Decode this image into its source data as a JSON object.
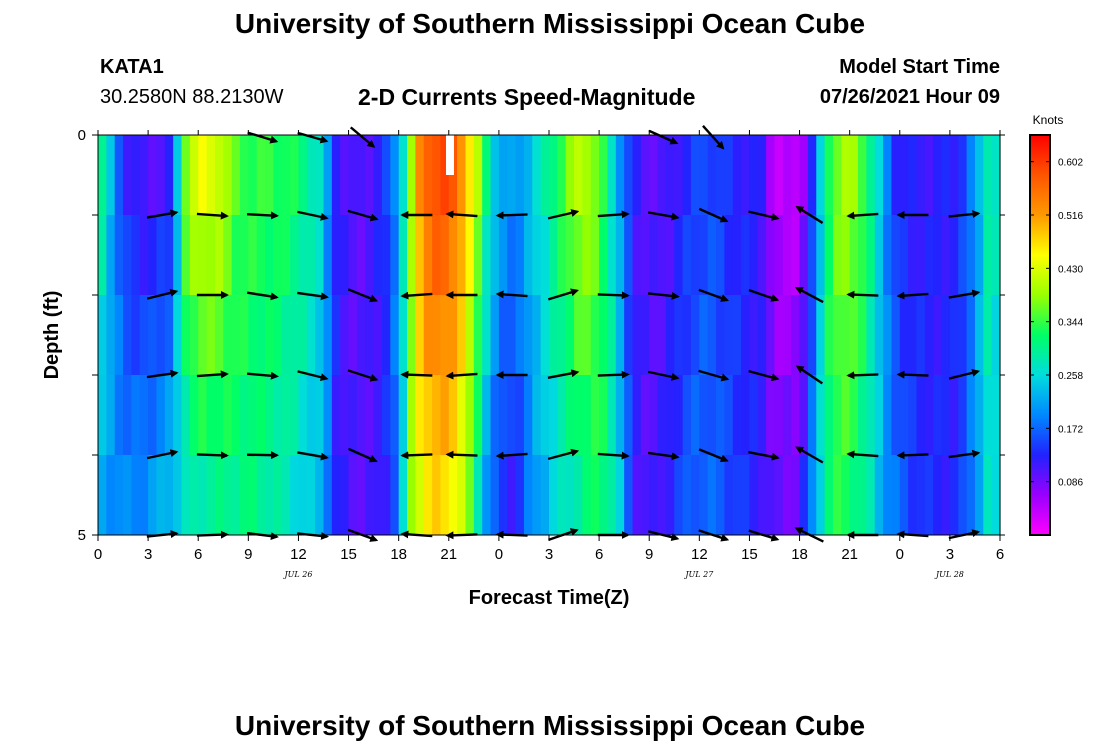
{
  "header": {
    "title": "University of Southern Mississippi Ocean Cube",
    "station": "KATA1",
    "coords": "30.2580N  88.2130W",
    "subtitle": "2-D Currents Speed-Magnitude",
    "model_start_label": "Model Start Time",
    "model_start_value": "07/26/2021 Hour 09"
  },
  "footer": {
    "title": "University of Southern Mississippi Ocean Cube"
  },
  "chart_data": {
    "type": "heatmap",
    "title": "2-D Currents Speed-Magnitude",
    "xlabel": "Forecast Time(Z)",
    "ylabel": "Depth (ft)",
    "x_tick_labels": [
      "0",
      "3",
      "6",
      "9",
      "12",
      "15",
      "18",
      "21",
      "0",
      "3",
      "6",
      "9",
      "12",
      "15",
      "18",
      "21",
      "0",
      "3",
      "6"
    ],
    "date_labels": [
      {
        "text": "JUL 26",
        "hour_index": 12
      },
      {
        "text": "JUL 27",
        "hour_index": 36
      },
      {
        "text": "JUL 28",
        "hour_index": 51
      }
    ],
    "x_range_hours": [
      0,
      54
    ],
    "y_range_ft": [
      0,
      5
    ],
    "y_tick_labels": [
      "0",
      "5"
    ],
    "depth_levels": 5,
    "colorbar": {
      "units": "Knots",
      "range": [
        0.0,
        0.645
      ],
      "tick_values": [
        "0.086",
        "0.172",
        "0.258",
        "0.344",
        "0.430",
        "0.516",
        "0.602"
      ],
      "colors": [
        "#ff00ff",
        "#9900ff",
        "#2222ff",
        "#0088ff",
        "#00dddd",
        "#00ff66",
        "#99ff00",
        "#ffff00",
        "#ff9900",
        "#ff5500",
        "#ff0000"
      ]
    },
    "speed_profile_top": [
      {
        "t": 0,
        "v": 0.34
      },
      {
        "t": 0.5,
        "v": 0.26
      },
      {
        "t": 1,
        "v": 0.2
      },
      {
        "t": 1.5,
        "v": 0.13
      },
      {
        "t": 3,
        "v": 0.1
      },
      {
        "t": 4.5,
        "v": 0.12
      },
      {
        "t": 5,
        "v": 0.36
      },
      {
        "t": 6,
        "v": 0.44
      },
      {
        "t": 7.5,
        "v": 0.42
      },
      {
        "t": 8,
        "v": 0.36
      },
      {
        "t": 9,
        "v": 0.34
      },
      {
        "t": 10.5,
        "v": 0.34
      },
      {
        "t": 11.5,
        "v": 0.33
      },
      {
        "t": 12.5,
        "v": 0.3
      },
      {
        "t": 13.5,
        "v": 0.26
      },
      {
        "t": 14,
        "v": 0.14
      },
      {
        "t": 15,
        "v": 0.1
      },
      {
        "t": 16,
        "v": 0.1
      },
      {
        "t": 17.2,
        "v": 0.14
      },
      {
        "t": 18,
        "v": 0.22
      },
      {
        "t": 18.7,
        "v": 0.38
      },
      {
        "t": 19.4,
        "v": 0.56
      },
      {
        "t": 20.5,
        "v": 0.6
      },
      {
        "t": 21.5,
        "v": 0.56
      },
      {
        "t": 22.5,
        "v": 0.44
      },
      {
        "t": 23.3,
        "v": 0.3
      },
      {
        "t": 24,
        "v": 0.22
      },
      {
        "t": 25,
        "v": 0.2
      },
      {
        "t": 26.5,
        "v": 0.27
      },
      {
        "t": 27.5,
        "v": 0.33
      },
      {
        "t": 29,
        "v": 0.42
      },
      {
        "t": 30,
        "v": 0.36
      },
      {
        "t": 31,
        "v": 0.24
      },
      {
        "t": 32,
        "v": 0.12
      },
      {
        "t": 33,
        "v": 0.1
      },
      {
        "t": 34,
        "v": 0.1
      },
      {
        "t": 35,
        "v": 0.13
      },
      {
        "t": 36.5,
        "v": 0.16
      },
      {
        "t": 38,
        "v": 0.13
      },
      {
        "t": 39.7,
        "v": 0.12
      },
      {
        "t": 40.5,
        "v": 0.04
      },
      {
        "t": 42,
        "v": 0.04
      },
      {
        "t": 42.8,
        "v": 0.14
      },
      {
        "t": 43.6,
        "v": 0.32
      },
      {
        "t": 44.5,
        "v": 0.4
      },
      {
        "t": 45.5,
        "v": 0.38
      },
      {
        "t": 46.3,
        "v": 0.3
      },
      {
        "t": 47,
        "v": 0.22
      },
      {
        "t": 47.6,
        "v": 0.14
      },
      {
        "t": 48.5,
        "v": 0.12
      },
      {
        "t": 50,
        "v": 0.12
      },
      {
        "t": 51.5,
        "v": 0.13
      },
      {
        "t": 52.5,
        "v": 0.2
      },
      {
        "t": 53.3,
        "v": 0.3
      },
      {
        "t": 54,
        "v": 0.26
      }
    ],
    "speed_profile_bottom": [
      {
        "t": 0,
        "v": 0.22
      },
      {
        "t": 1,
        "v": 0.2
      },
      {
        "t": 2,
        "v": 0.19
      },
      {
        "t": 3,
        "v": 0.2
      },
      {
        "t": 4.5,
        "v": 0.24
      },
      {
        "t": 6,
        "v": 0.29
      },
      {
        "t": 7.5,
        "v": 0.3
      },
      {
        "t": 9,
        "v": 0.31
      },
      {
        "t": 10.5,
        "v": 0.29
      },
      {
        "t": 12,
        "v": 0.26
      },
      {
        "t": 13.5,
        "v": 0.22
      },
      {
        "t": 14.3,
        "v": 0.12
      },
      {
        "t": 15.5,
        "v": 0.1
      },
      {
        "t": 17,
        "v": 0.11
      },
      {
        "t": 18,
        "v": 0.18
      },
      {
        "t": 18.7,
        "v": 0.38
      },
      {
        "t": 19.5,
        "v": 0.46
      },
      {
        "t": 20.5,
        "v": 0.48
      },
      {
        "t": 21.5,
        "v": 0.45
      },
      {
        "t": 22.5,
        "v": 0.33
      },
      {
        "t": 23.3,
        "v": 0.2
      },
      {
        "t": 24,
        "v": 0.14
      },
      {
        "t": 25,
        "v": 0.12
      },
      {
        "t": 26,
        "v": 0.2
      },
      {
        "t": 27.5,
        "v": 0.26
      },
      {
        "t": 29,
        "v": 0.3
      },
      {
        "t": 30,
        "v": 0.33
      },
      {
        "t": 31,
        "v": 0.28
      },
      {
        "t": 32,
        "v": 0.12
      },
      {
        "t": 33,
        "v": 0.1
      },
      {
        "t": 34,
        "v": 0.12
      },
      {
        "t": 35.5,
        "v": 0.17
      },
      {
        "t": 37,
        "v": 0.17
      },
      {
        "t": 38.5,
        "v": 0.14
      },
      {
        "t": 39.7,
        "v": 0.12
      },
      {
        "t": 40.5,
        "v": 0.09
      },
      {
        "t": 42,
        "v": 0.09
      },
      {
        "t": 42.8,
        "v": 0.2
      },
      {
        "t": 43.6,
        "v": 0.31
      },
      {
        "t": 44.5,
        "v": 0.34
      },
      {
        "t": 45.5,
        "v": 0.31
      },
      {
        "t": 46.3,
        "v": 0.27
      },
      {
        "t": 47.2,
        "v": 0.2
      },
      {
        "t": 48.5,
        "v": 0.15
      },
      {
        "t": 50,
        "v": 0.13
      },
      {
        "t": 51.5,
        "v": 0.13
      },
      {
        "t": 52.5,
        "v": 0.2
      },
      {
        "t": 53.3,
        "v": 0.27
      },
      {
        "t": 54,
        "v": 0.24
      }
    ],
    "vector_times_hours": [
      3.1,
      6.1,
      9.1,
      12.1,
      15.1,
      18.4,
      21.1,
      24.1,
      27.1,
      30.1,
      33.1,
      36.1,
      39.1,
      41.9,
      45.1,
      48.1,
      51.1
    ],
    "vector_depths_ft": [
      0,
      1,
      2,
      3,
      4,
      5
    ],
    "vector_directions_deg": [
      10,
      0,
      -5,
      -10,
      -20,
      180,
      180,
      180,
      15,
      0,
      -10,
      -20,
      -15,
      150,
      180,
      180,
      10
    ],
    "top_row_directions_deg": [
      null,
      null,
      -15,
      -20,
      -40,
      null,
      null,
      null,
      null,
      null,
      -20,
      -50,
      null,
      null,
      null,
      null,
      null
    ]
  }
}
